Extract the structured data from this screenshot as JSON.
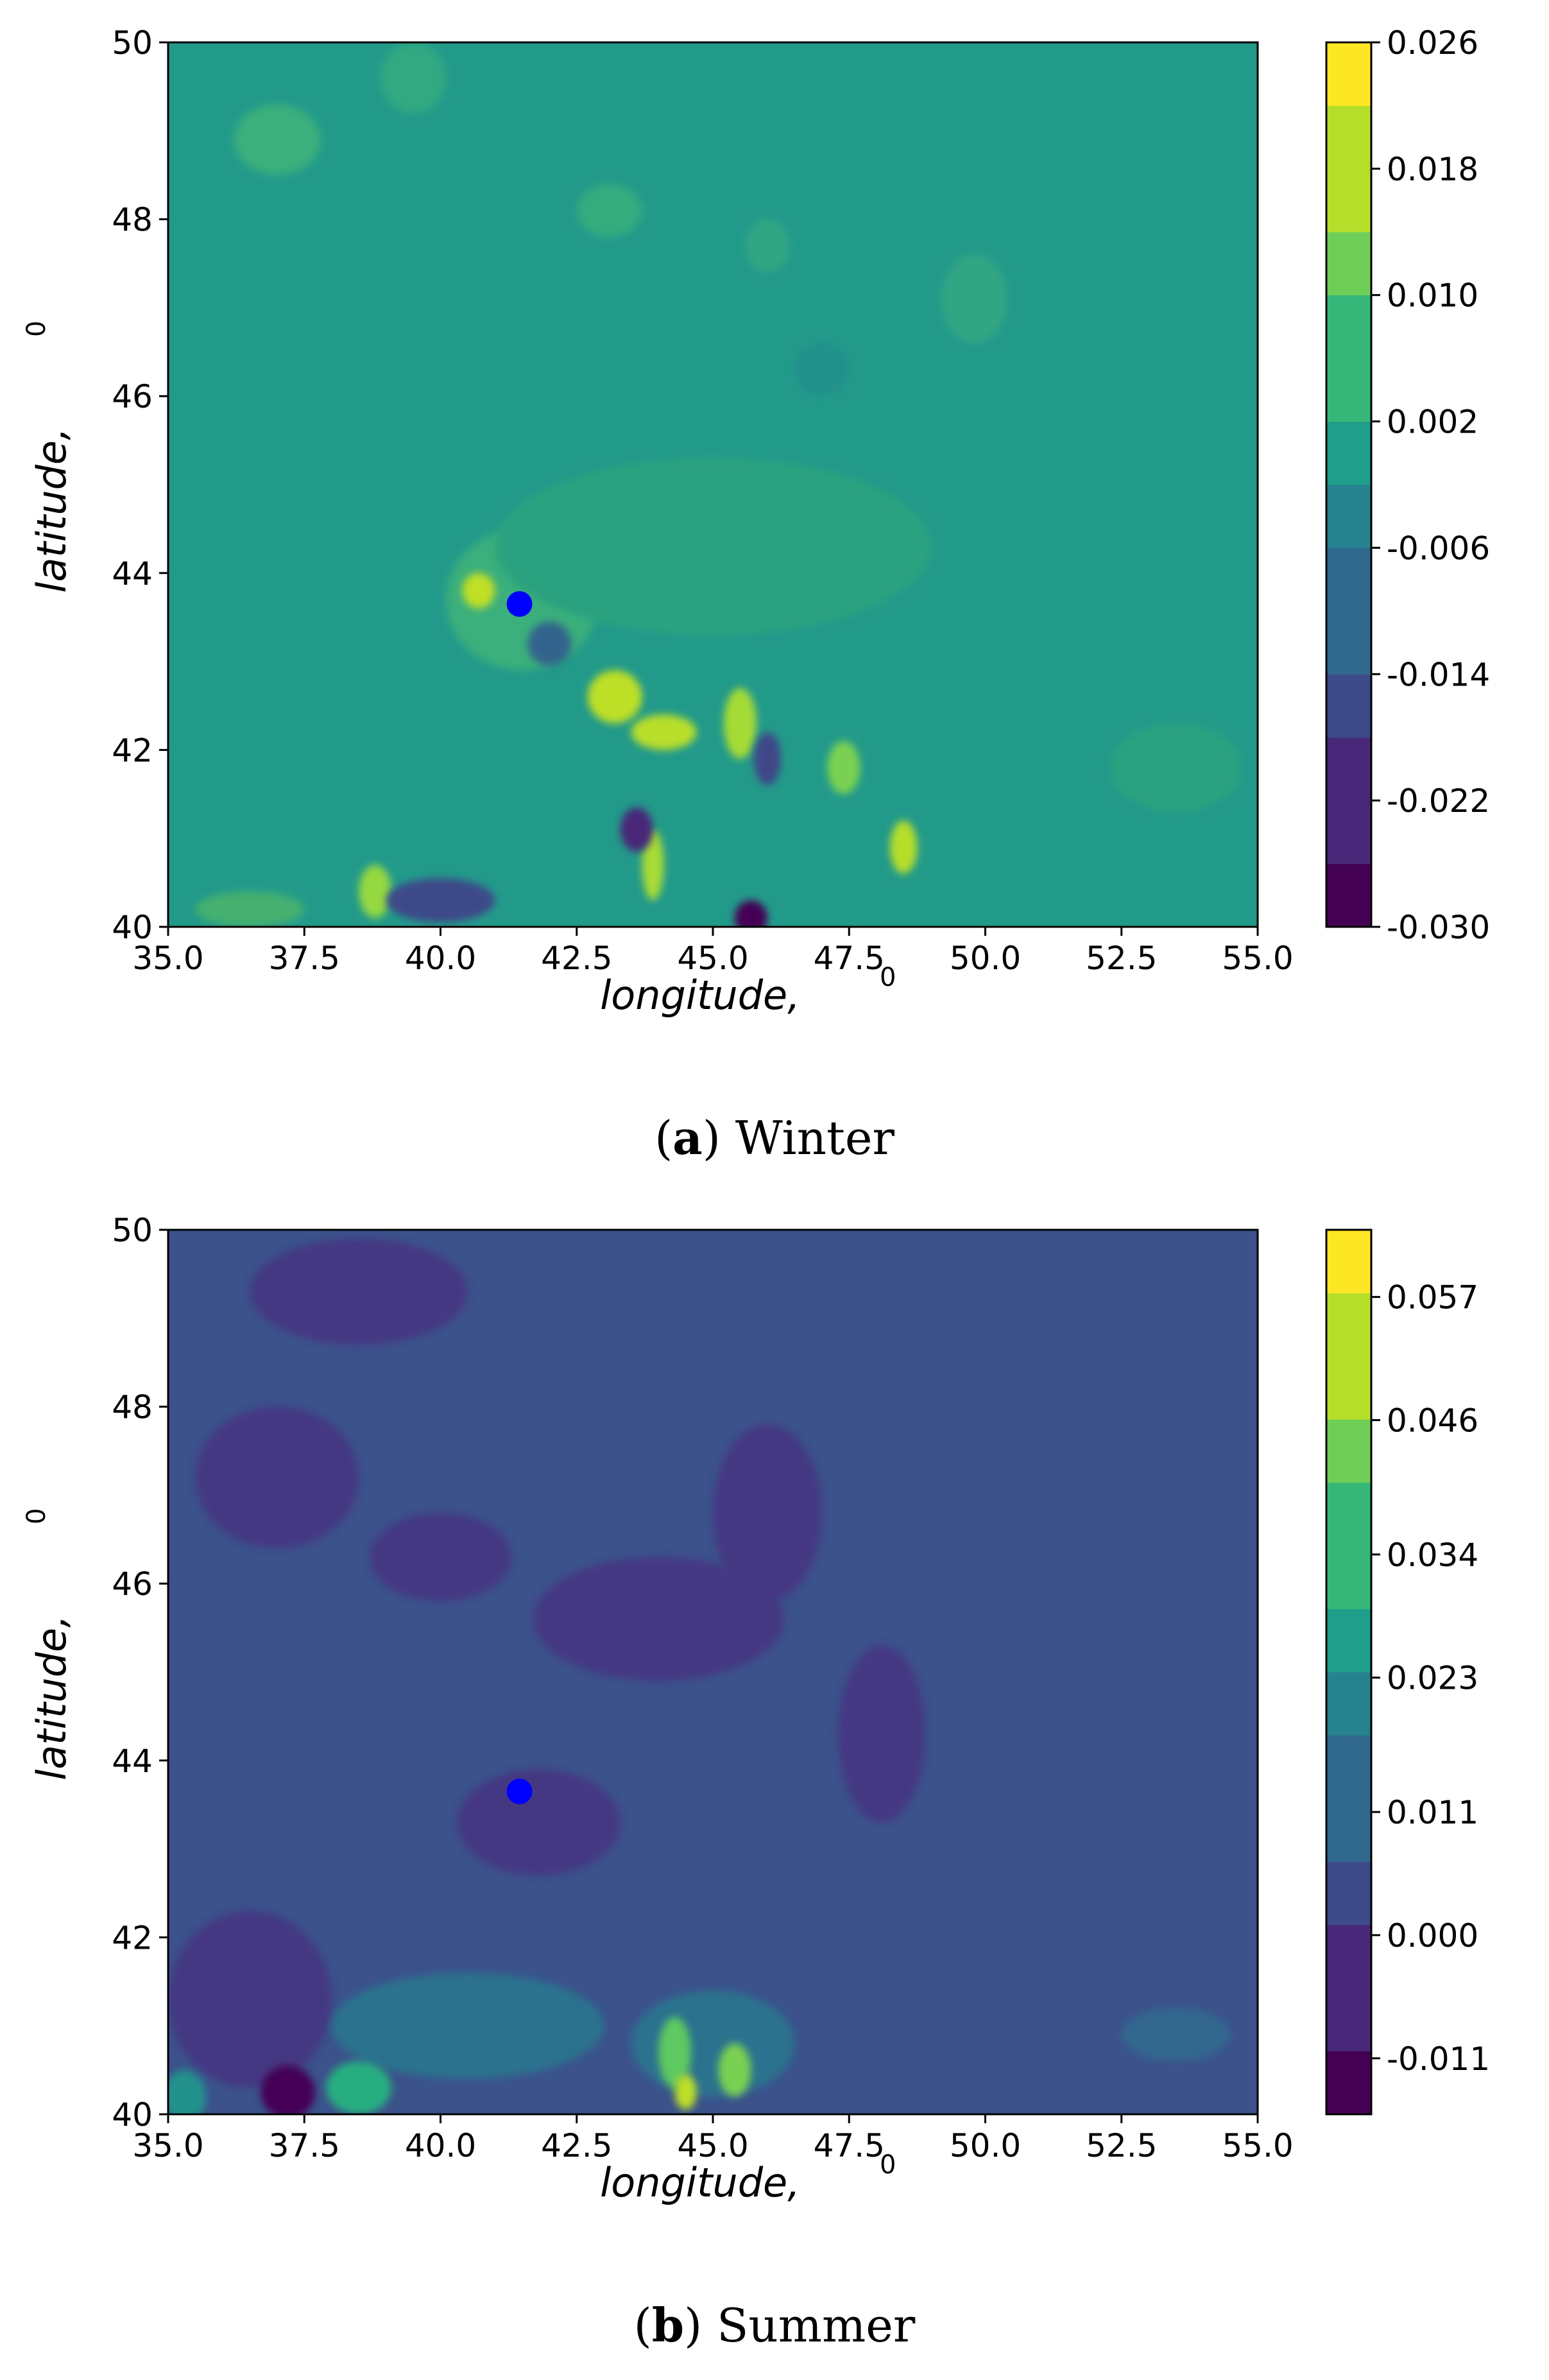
{
  "chart_data": [
    {
      "type": "heatmap",
      "panel": "a",
      "caption_label": "a",
      "caption_text": "Winter",
      "xlabel": "longitude,",
      "xlabel_sup": "0",
      "ylabel": "latitude,",
      "ylabel_sup": "0",
      "xlim": [
        35.0,
        55.0
      ],
      "ylim": [
        40,
        50
      ],
      "xticks": [
        "35.0",
        "37.5",
        "40.0",
        "42.5",
        "45.0",
        "47.5",
        "50.0",
        "52.5",
        "55.0"
      ],
      "yticks": [
        "40",
        "42",
        "44",
        "46",
        "48",
        "50"
      ],
      "colorbar_ticks": [
        "0.026",
        "0.018",
        "0.010",
        "0.002",
        "-0.006",
        "-0.014",
        "-0.022",
        "-0.030"
      ],
      "colorbar_range": [
        -0.03,
        0.026
      ],
      "colormap": "viridis",
      "background_color": "#229a8a",
      "marker": {
        "lon": 41.45,
        "lat": 43.65,
        "color": "#0000ff"
      },
      "regions": [
        {
          "lon": 41.5,
          "lat": 43.7,
          "rlon": 1.4,
          "rlat": 0.8,
          "color": "#3aaf7c"
        },
        {
          "lon": 40.7,
          "lat": 43.8,
          "rlon": 0.3,
          "rlat": 0.2,
          "color": "#c0df25"
        },
        {
          "lon": 43.2,
          "lat": 42.6,
          "rlon": 0.5,
          "rlat": 0.3,
          "color": "#bddf26"
        },
        {
          "lon": 44.1,
          "lat": 42.2,
          "rlon": 0.6,
          "rlat": 0.2,
          "color": "#b8de29"
        },
        {
          "lon": 43.9,
          "lat": 40.7,
          "rlon": 0.2,
          "rlat": 0.4,
          "color": "#a8db34"
        },
        {
          "lon": 45.5,
          "lat": 42.3,
          "rlon": 0.3,
          "rlat": 0.4,
          "color": "#a5db36"
        },
        {
          "lon": 47.4,
          "lat": 41.8,
          "rlon": 0.3,
          "rlat": 0.3,
          "color": "#7ad151"
        },
        {
          "lon": 48.5,
          "lat": 40.9,
          "rlon": 0.25,
          "rlat": 0.3,
          "color": "#b5de2b"
        },
        {
          "lon": 38.8,
          "lat": 40.4,
          "rlon": 0.3,
          "rlat": 0.3,
          "color": "#95d840"
        },
        {
          "lon": 42.0,
          "lat": 43.2,
          "rlon": 0.4,
          "rlat": 0.25,
          "color": "#33638d"
        },
        {
          "lon": 43.6,
          "lat": 41.1,
          "rlon": 0.3,
          "rlat": 0.25,
          "color": "#482878"
        },
        {
          "lon": 45.7,
          "lat": 40.1,
          "rlon": 0.3,
          "rlat": 0.2,
          "color": "#440154"
        },
        {
          "lon": 40.0,
          "lat": 40.3,
          "rlon": 1.0,
          "rlat": 0.25,
          "color": "#3e4a89"
        },
        {
          "lon": 46.0,
          "lat": 41.9,
          "rlon": 0.25,
          "rlat": 0.3,
          "color": "#404688"
        },
        {
          "lon": 47.0,
          "lat": 46.3,
          "rlon": 0.5,
          "rlat": 0.3,
          "color": "#21918c"
        },
        {
          "lon": 45.0,
          "lat": 44.3,
          "rlon": 4.0,
          "rlat": 1.0,
          "color": "#2aa27f"
        },
        {
          "lon": 37.0,
          "lat": 48.9,
          "rlon": 0.8,
          "rlat": 0.4,
          "color": "#3aaf7c"
        },
        {
          "lon": 39.5,
          "lat": 49.6,
          "rlon": 0.6,
          "rlat": 0.4,
          "color": "#33a981"
        },
        {
          "lon": 49.8,
          "lat": 47.1,
          "rlon": 0.6,
          "rlat": 0.5,
          "color": "#31a683"
        },
        {
          "lon": 43.1,
          "lat": 48.1,
          "rlon": 0.6,
          "rlat": 0.3,
          "color": "#35ab7e"
        },
        {
          "lon": 46.0,
          "lat": 47.7,
          "rlon": 0.4,
          "rlat": 0.3,
          "color": "#31a683"
        },
        {
          "lon": 53.5,
          "lat": 41.8,
          "rlon": 1.2,
          "rlat": 0.5,
          "color": "#2aa27f"
        },
        {
          "lon": 36.5,
          "lat": 40.2,
          "rlon": 1.0,
          "rlat": 0.2,
          "color": "#44b06f"
        }
      ]
    },
    {
      "type": "heatmap",
      "panel": "b",
      "caption_label": "b",
      "caption_text": "Summer",
      "xlabel": "longitude,",
      "xlabel_sup": "0",
      "ylabel": "latitude,",
      "ylabel_sup": "0",
      "xlim": [
        35.0,
        55.0
      ],
      "ylim": [
        40,
        50
      ],
      "xticks": [
        "35.0",
        "37.5",
        "40.0",
        "42.5",
        "45.0",
        "47.5",
        "50.0",
        "52.5",
        "55.0"
      ],
      "yticks": [
        "40",
        "42",
        "44",
        "46",
        "48",
        "50"
      ],
      "colorbar_ticks": [
        "0.057",
        "0.046",
        "0.034",
        "0.023",
        "0.011",
        "0.000",
        "-0.011"
      ],
      "colorbar_range": [
        -0.016,
        0.063
      ],
      "colormap": "viridis",
      "background_color": "#3b528b",
      "marker": {
        "lon": 41.45,
        "lat": 43.65,
        "color": "#0000ff"
      },
      "regions": [
        {
          "lon": 44.0,
          "lat": 45.6,
          "rlon": 2.3,
          "rlat": 0.7,
          "color": "#443983"
        },
        {
          "lon": 48.1,
          "lat": 44.3,
          "rlon": 0.8,
          "rlat": 1.0,
          "color": "#443983"
        },
        {
          "lon": 46.0,
          "lat": 46.8,
          "rlon": 1.0,
          "rlat": 1.0,
          "color": "#443983"
        },
        {
          "lon": 40.0,
          "lat": 46.3,
          "rlon": 1.3,
          "rlat": 0.5,
          "color": "#443983"
        },
        {
          "lon": 37.0,
          "lat": 47.2,
          "rlon": 1.5,
          "rlat": 0.8,
          "color": "#443983"
        },
        {
          "lon": 38.5,
          "lat": 49.3,
          "rlon": 2.0,
          "rlat": 0.6,
          "color": "#443983"
        },
        {
          "lon": 41.8,
          "lat": 43.3,
          "rlon": 1.5,
          "rlat": 0.6,
          "color": "#443983"
        },
        {
          "lon": 36.5,
          "lat": 41.3,
          "rlon": 1.5,
          "rlat": 1.0,
          "color": "#443983"
        },
        {
          "lon": 40.5,
          "lat": 41.0,
          "rlon": 2.5,
          "rlat": 0.6,
          "color": "#2c728e"
        },
        {
          "lon": 45.0,
          "lat": 40.8,
          "rlon": 1.5,
          "rlat": 0.6,
          "color": "#2c728e"
        },
        {
          "lon": 44.3,
          "lat": 40.7,
          "rlon": 0.3,
          "rlat": 0.4,
          "color": "#5ec962"
        },
        {
          "lon": 45.4,
          "lat": 40.5,
          "rlon": 0.3,
          "rlat": 0.3,
          "color": "#7ad151"
        },
        {
          "lon": 44.5,
          "lat": 40.25,
          "rlon": 0.2,
          "rlat": 0.2,
          "color": "#bddf26"
        },
        {
          "lon": 37.2,
          "lat": 40.25,
          "rlon": 0.5,
          "rlat": 0.3,
          "color": "#440154"
        },
        {
          "lon": 35.3,
          "lat": 40.2,
          "rlon": 0.4,
          "rlat": 0.3,
          "color": "#21918c"
        },
        {
          "lon": 38.5,
          "lat": 40.3,
          "rlon": 0.6,
          "rlat": 0.3,
          "color": "#28ae80"
        },
        {
          "lon": 53.5,
          "lat": 40.9,
          "rlon": 1.0,
          "rlat": 0.3,
          "color": "#31688e"
        }
      ]
    }
  ]
}
